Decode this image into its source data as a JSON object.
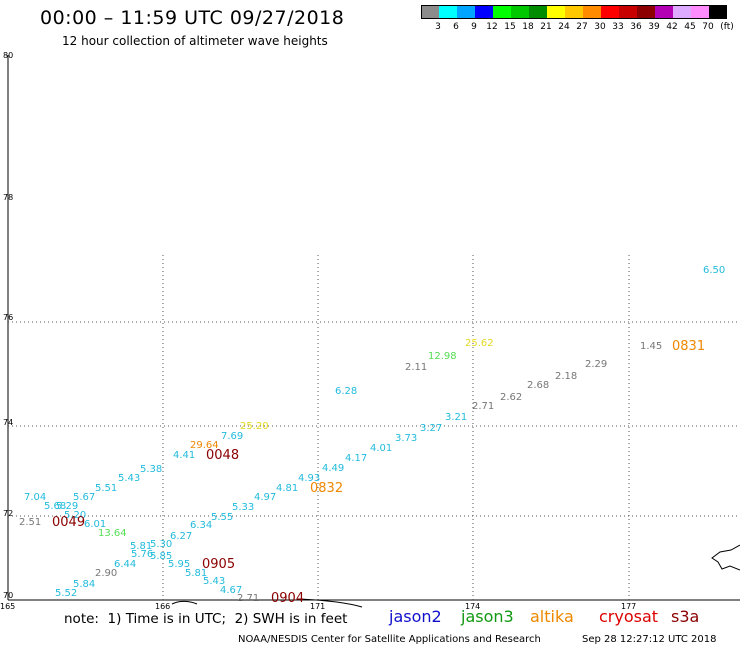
{
  "header": {
    "title": "00:00 – 11:59 UTC 09/27/2018",
    "subtitle": "12 hour collection of altimeter wave heights"
  },
  "color_scale": {
    "unit_label": "(ft)",
    "bins": [
      {
        "label": "3",
        "color": "#8c8c8c"
      },
      {
        "label": "6",
        "color": "#00ffff"
      },
      {
        "label": "9",
        "color": "#00a5ff"
      },
      {
        "label": "12",
        "color": "#0000ff"
      },
      {
        "label": "15",
        "color": "#00ff00"
      },
      {
        "label": "18",
        "color": "#00c800"
      },
      {
        "label": "21",
        "color": "#008c00"
      },
      {
        "label": "24",
        "color": "#ffff00"
      },
      {
        "label": "27",
        "color": "#ffc800"
      },
      {
        "label": "30",
        "color": "#ff8c00"
      },
      {
        "label": "33",
        "color": "#ff0000"
      },
      {
        "label": "36",
        "color": "#c80000"
      },
      {
        "label": "39",
        "color": "#8c0000"
      },
      {
        "label": "42",
        "color": "#b400b4"
      },
      {
        "label": "45",
        "color": "#ddaaff"
      },
      {
        "label": "70",
        "color": "#ff8cff"
      },
      {
        "label": "",
        "color": "#000000"
      }
    ]
  },
  "map": {
    "lat_labels": [
      "80",
      "78",
      "76",
      "74",
      "72",
      "70"
    ],
    "lon_labels": [
      "165",
      "166",
      "171",
      "174",
      "177"
    ],
    "wave_heights": [
      {
        "text": "6.50",
        "color": "#22bbdd"
      },
      {
        "text": "25.62",
        "color": "#e6d820"
      },
      {
        "text": "12.98",
        "color": "#55dd55"
      },
      {
        "text": "2.11",
        "color": "#777777"
      },
      {
        "text": "1.45",
        "color": "#777777"
      },
      {
        "text": "2.29",
        "color": "#777777"
      },
      {
        "text": "2.18",
        "color": "#777777"
      },
      {
        "text": "2.68",
        "color": "#777777"
      },
      {
        "text": "2.62",
        "color": "#777777"
      },
      {
        "text": "2.71",
        "color": "#777777"
      },
      {
        "text": "6.28",
        "color": "#22bbdd"
      },
      {
        "text": "3.21",
        "color": "#22bbdd"
      },
      {
        "text": "3.27",
        "color": "#22bbdd"
      },
      {
        "text": "3.73",
        "color": "#22bbdd"
      },
      {
        "text": "4.01",
        "color": "#22bbdd"
      },
      {
        "text": "4.17",
        "color": "#22bbdd"
      },
      {
        "text": "4.49",
        "color": "#22bbdd"
      },
      {
        "text": "4.93",
        "color": "#22bbdd"
      },
      {
        "text": "4.81",
        "color": "#22bbdd"
      },
      {
        "text": "4.97",
        "color": "#22bbdd"
      },
      {
        "text": "5.33",
        "color": "#22bbdd"
      },
      {
        "text": "5.55",
        "color": "#22bbdd"
      },
      {
        "text": "25.20",
        "color": "#e6d820"
      },
      {
        "text": "29.64",
        "color": "#ee8800"
      },
      {
        "text": "7.69",
        "color": "#22bbdd"
      },
      {
        "text": "4.41",
        "color": "#22bbdd"
      },
      {
        "text": "5.38",
        "color": "#22bbdd"
      },
      {
        "text": "5.43",
        "color": "#22bbdd"
      },
      {
        "text": "5.51",
        "color": "#22bbdd"
      },
      {
        "text": "5.67",
        "color": "#22bbdd"
      },
      {
        "text": "7.04",
        "color": "#22bbdd"
      },
      {
        "text": "5.68",
        "color": "#22bbdd"
      },
      {
        "text": "5.29",
        "color": "#22bbdd"
      },
      {
        "text": "5.20",
        "color": "#22bbdd"
      },
      {
        "text": "6.01",
        "color": "#22bbdd"
      },
      {
        "text": "2.51",
        "color": "#777777"
      },
      {
        "text": "13.64",
        "color": "#55dd55"
      },
      {
        "text": "6.34",
        "color": "#22bbdd"
      },
      {
        "text": "6.27",
        "color": "#22bbdd"
      },
      {
        "text": "5.81",
        "color": "#22bbdd"
      },
      {
        "text": "5.30",
        "color": "#22bbdd"
      },
      {
        "text": "5.76",
        "color": "#22bbdd"
      },
      {
        "text": "5.85",
        "color": "#22bbdd"
      },
      {
        "text": "6.44",
        "color": "#22bbdd"
      },
      {
        "text": "5.95",
        "color": "#22bbdd"
      },
      {
        "text": "5.81",
        "color": "#22bbdd"
      },
      {
        "text": "2.90",
        "color": "#777777"
      },
      {
        "text": "5.43",
        "color": "#22bbdd"
      },
      {
        "text": "5.84",
        "color": "#22bbdd"
      },
      {
        "text": "4.67",
        "color": "#22bbdd"
      },
      {
        "text": "5.52",
        "color": "#22bbdd"
      },
      {
        "text": "2.71",
        "color": "#777777"
      }
    ],
    "pass_times": [
      {
        "text": "0831",
        "color": "#ee8800"
      },
      {
        "text": "0832",
        "color": "#ee8800"
      },
      {
        "text": "0048",
        "color": "#8b0000"
      },
      {
        "text": "0049",
        "color": "#8b0000"
      },
      {
        "text": "0905",
        "color": "#8b0000"
      },
      {
        "text": "0904",
        "color": "#8b0000"
      }
    ]
  },
  "footer": {
    "note": "note:  1) Time is in UTC;  2) SWH is in feet",
    "satellites": [
      {
        "name": "jason2",
        "color": "#1010cc"
      },
      {
        "name": "jason3",
        "color": "#119911"
      },
      {
        "name": "altika",
        "color": "#ee8800"
      },
      {
        "name": "cryosat",
        "color": "#dd0000"
      },
      {
        "name": "s3a",
        "color": "#8b0000"
      }
    ],
    "credit": "NOAA/NESDIS Center for Satellite Applications and Research",
    "generated": "Sep 28 12:27:12 UTC 2018"
  }
}
